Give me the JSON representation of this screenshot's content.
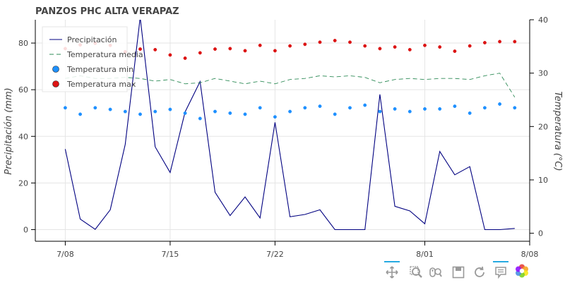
{
  "chart_data": {
    "type": "line",
    "title": "PANZOS PHC ALTA VERAPAZ",
    "x": [
      "2023-07-08",
      "2023-07-09",
      "2023-07-10",
      "2023-07-11",
      "2023-07-12",
      "2023-07-13",
      "2023-07-14",
      "2023-07-15",
      "2023-07-16",
      "2023-07-17",
      "2023-07-18",
      "2023-07-19",
      "2023-07-20",
      "2023-07-21",
      "2023-07-22",
      "2023-07-23",
      "2023-07-24",
      "2023-07-25",
      "2023-07-26",
      "2023-07-27",
      "2023-07-28",
      "2023-07-29",
      "2023-07-30",
      "2023-07-31",
      "2023-08-01",
      "2023-08-02",
      "2023-08-03",
      "2023-08-04",
      "2023-08-05",
      "2023-08-06",
      "2023-08-07"
    ],
    "x_ticks": [
      {
        "date": "2023-07-08",
        "label": "7/08"
      },
      {
        "date": "2023-07-15",
        "label": "7/15"
      },
      {
        "date": "2023-07-22",
        "label": "7/22"
      },
      {
        "date": "2023-08-01",
        "label": "8/01"
      },
      {
        "date": "2023-08-08",
        "label": "8/08"
      }
    ],
    "xlim": [
      "2023-07-06",
      "2023-08-08"
    ],
    "y_left": {
      "label": "Precipitación (mm)",
      "lim": [
        -5,
        90
      ],
      "ticks": [
        0,
        20,
        40,
        60,
        80
      ]
    },
    "y_right": {
      "label": "Temperatura (°C)",
      "lim": [
        -1.5,
        40
      ],
      "ticks": [
        0,
        10,
        20,
        30,
        40
      ]
    },
    "grid": true,
    "legend": {
      "placement": "top-left"
    },
    "series": [
      {
        "name": "Precipitación",
        "axis": "left",
        "kind": "line",
        "color": "#000080",
        "dash": "solid",
        "values": [
          34.5,
          4.5,
          0.1,
          8.5,
          36.5,
          91.0,
          35.5,
          24.5,
          50.5,
          63.5,
          16.0,
          6.0,
          14.0,
          5.0,
          46.0,
          5.5,
          6.5,
          8.5,
          0.0,
          0.0,
          0.0,
          58.0,
          10.0,
          8.0,
          2.5,
          33.5,
          23.5,
          27.0,
          0.0,
          0.0,
          0.5
        ]
      },
      {
        "name": "Temperatura media",
        "axis": "right",
        "kind": "line",
        "color": "#2e8b57",
        "dash": "dashed",
        "values": [
          29.0,
          29.5,
          29.0,
          29.0,
          29.2,
          29.0,
          28.5,
          28.8,
          28.0,
          28.2,
          29.0,
          28.5,
          28.0,
          28.5,
          28.0,
          28.8,
          29.0,
          29.5,
          29.3,
          29.5,
          29.2,
          28.2,
          28.8,
          29.0,
          28.8,
          29.0,
          29.0,
          28.8,
          29.5,
          30.0,
          25.5
        ]
      },
      {
        "name": "Temperatura min",
        "axis": "right",
        "kind": "scatter",
        "color": "#1e90ff",
        "values": [
          23.5,
          22.3,
          23.5,
          23.2,
          22.8,
          22.3,
          22.8,
          23.2,
          22.5,
          21.5,
          22.8,
          22.5,
          22.3,
          23.5,
          21.8,
          22.8,
          23.5,
          23.8,
          22.3,
          23.5,
          24.0,
          22.8,
          23.3,
          22.8,
          23.3,
          23.3,
          23.8,
          22.5,
          23.5,
          24.2,
          23.5
        ]
      },
      {
        "name": "Temperatura max",
        "axis": "right",
        "kind": "scatter",
        "color": "#dc1414",
        "values": [
          34.6,
          35.3,
          35.6,
          35.2,
          34.0,
          34.5,
          34.4,
          33.4,
          32.8,
          33.8,
          34.5,
          34.6,
          34.2,
          35.2,
          34.2,
          35.1,
          35.4,
          35.8,
          36.1,
          35.8,
          35.1,
          34.6,
          34.9,
          34.4,
          35.2,
          34.9,
          34.1,
          35.1,
          35.7,
          35.9,
          35.9
        ]
      }
    ]
  },
  "toolbar": {
    "items": [
      {
        "name": "pan-tool-button",
        "icon": "pan-icon",
        "active": true
      },
      {
        "name": "box-zoom-tool-button",
        "icon": "zoom-icon",
        "active": false
      },
      {
        "name": "wheel-zoom-tool-button",
        "icon": "wheel-zoom-icon",
        "active": false
      },
      {
        "name": "save-tool-button",
        "icon": "save-icon",
        "active": false
      },
      {
        "name": "reset-tool-button",
        "icon": "reset-icon",
        "active": false
      },
      {
        "name": "hover-tool-button",
        "icon": "hover-icon",
        "active": true
      },
      {
        "name": "bokeh-logo-button",
        "icon": "bokeh-logo-icon",
        "active": false
      }
    ]
  }
}
